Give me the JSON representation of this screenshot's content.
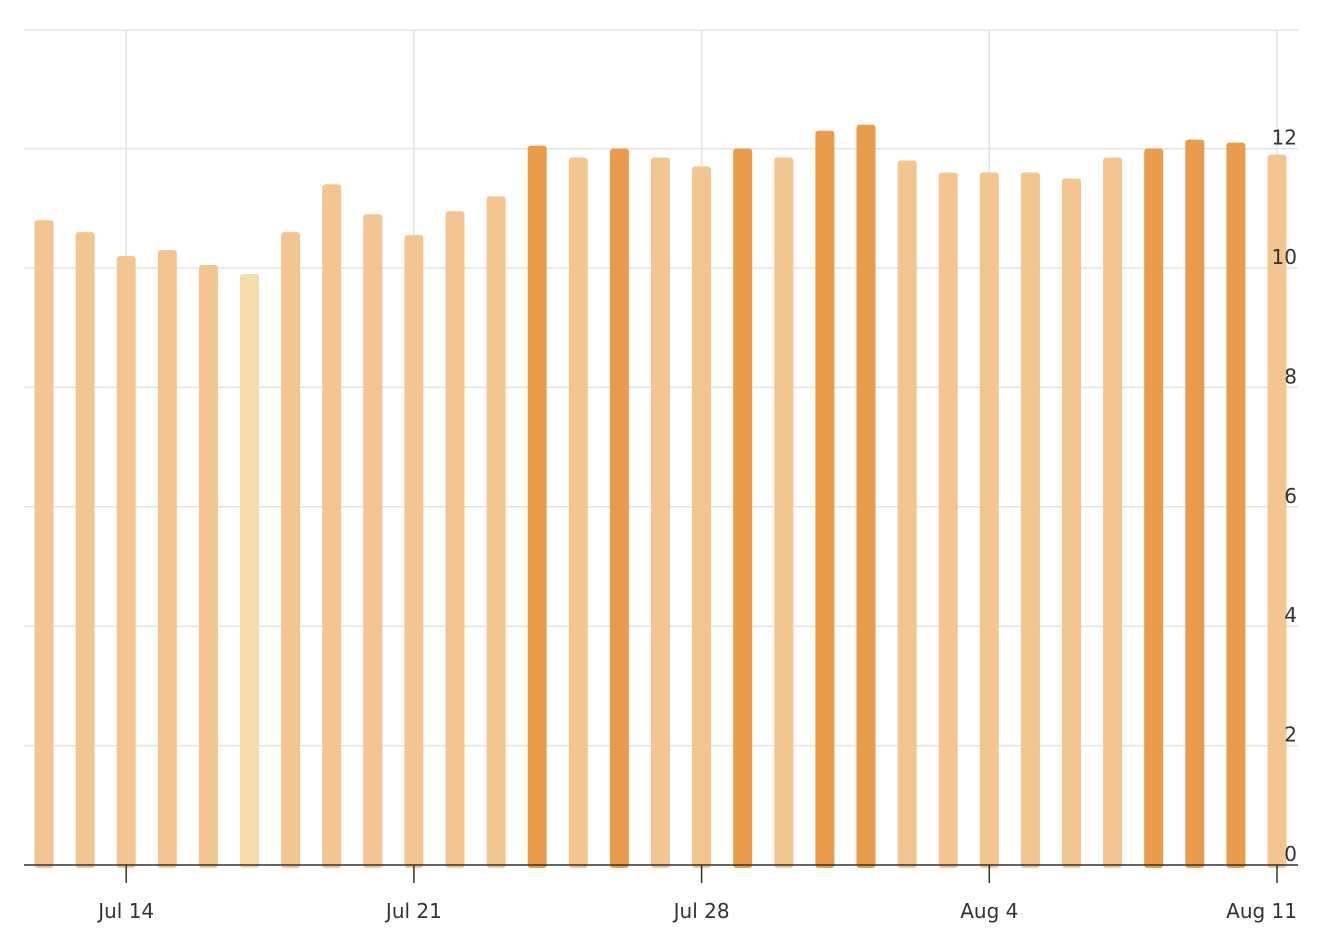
{
  "chart_data": {
    "type": "bar",
    "x_axis": {
      "tick_labels": [
        "Jul 14",
        "Jul 21",
        "Jul 28",
        "Aug 4",
        "Aug 11"
      ],
      "tick_dates": [
        "2024-07-14",
        "2024-07-21",
        "2024-07-28",
        "2024-08-04",
        "2024-08-11"
      ]
    },
    "y_axis": {
      "tick_labels": [
        "0",
        "2",
        "4",
        "6",
        "8",
        "10",
        "12"
      ],
      "ticks": [
        0,
        2,
        4,
        6,
        8,
        10,
        12
      ],
      "range": [
        0,
        14
      ],
      "position": "right"
    },
    "grid": true,
    "colors": {
      "high": "#e99d4c",
      "mid": "#f3c591",
      "low": "#f7dba9"
    },
    "bars": [
      {
        "date": "2024-07-12",
        "value": 10.8,
        "color": "mid"
      },
      {
        "date": "2024-07-13",
        "value": 10.6,
        "color": "mid"
      },
      {
        "date": "2024-07-14",
        "value": 10.2,
        "color": "mid"
      },
      {
        "date": "2024-07-15",
        "value": 10.3,
        "color": "mid"
      },
      {
        "date": "2024-07-16",
        "value": 10.05,
        "color": "mid"
      },
      {
        "date": "2024-07-17",
        "value": 9.9,
        "color": "low"
      },
      {
        "date": "2024-07-18",
        "value": 10.6,
        "color": "mid"
      },
      {
        "date": "2024-07-19",
        "value": 11.4,
        "color": "mid"
      },
      {
        "date": "2024-07-20",
        "value": 10.9,
        "color": "mid"
      },
      {
        "date": "2024-07-21",
        "value": 10.55,
        "color": "mid"
      },
      {
        "date": "2024-07-22",
        "value": 10.95,
        "color": "mid"
      },
      {
        "date": "2024-07-23",
        "value": 11.2,
        "color": "mid"
      },
      {
        "date": "2024-07-24",
        "value": 12.05,
        "color": "high"
      },
      {
        "date": "2024-07-25",
        "value": 11.85,
        "color": "mid"
      },
      {
        "date": "2024-07-26",
        "value": 12.0,
        "color": "high"
      },
      {
        "date": "2024-07-27",
        "value": 11.85,
        "color": "mid"
      },
      {
        "date": "2024-07-28",
        "value": 11.7,
        "color": "mid"
      },
      {
        "date": "2024-07-29",
        "value": 12.0,
        "color": "high"
      },
      {
        "date": "2024-07-30",
        "value": 11.85,
        "color": "mid"
      },
      {
        "date": "2024-07-31",
        "value": 12.3,
        "color": "high"
      },
      {
        "date": "2024-08-01",
        "value": 12.4,
        "color": "high"
      },
      {
        "date": "2024-08-02",
        "value": 11.8,
        "color": "mid"
      },
      {
        "date": "2024-08-03",
        "value": 11.6,
        "color": "mid"
      },
      {
        "date": "2024-08-04",
        "value": 11.6,
        "color": "mid"
      },
      {
        "date": "2024-08-05",
        "value": 11.6,
        "color": "mid"
      },
      {
        "date": "2024-08-06",
        "value": 11.5,
        "color": "mid"
      },
      {
        "date": "2024-08-07",
        "value": 11.85,
        "color": "mid"
      },
      {
        "date": "2024-08-08",
        "value": 12.0,
        "color": "high"
      },
      {
        "date": "2024-08-09",
        "value": 12.15,
        "color": "high"
      },
      {
        "date": "2024-08-10",
        "value": 12.1,
        "color": "high"
      },
      {
        "date": "2024-08-11",
        "value": 11.9,
        "color": "mid"
      }
    ]
  }
}
